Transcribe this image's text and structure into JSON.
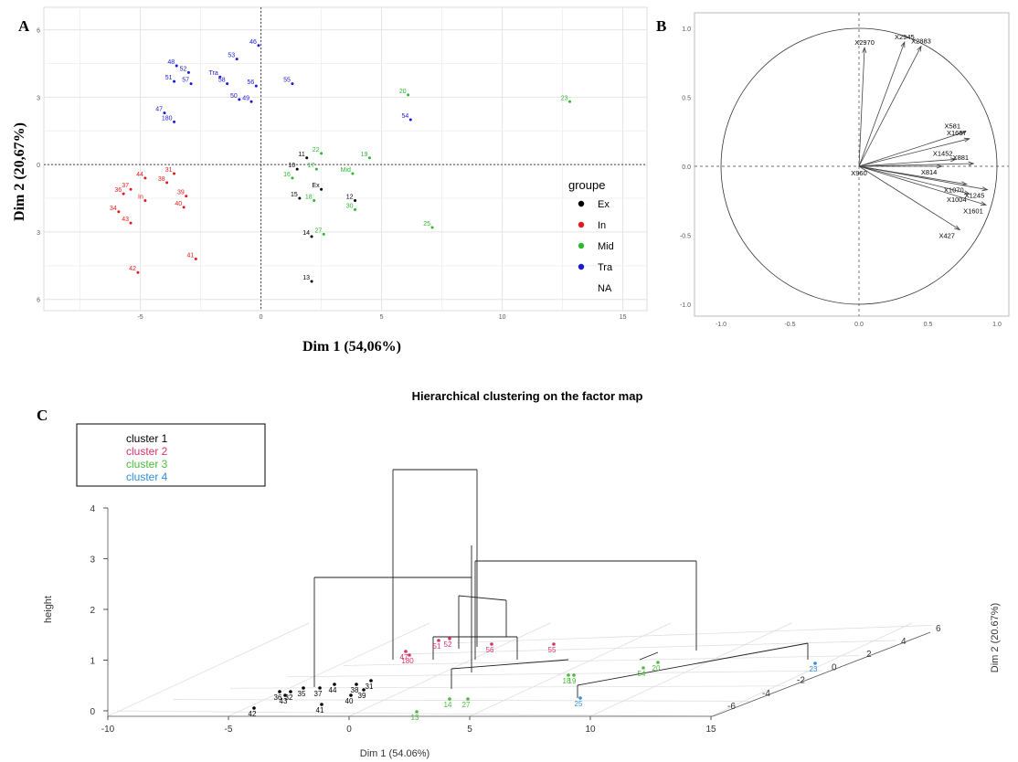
{
  "panels": {
    "a": "A",
    "b": "B",
    "c": "C"
  },
  "colors": {
    "cluster1": "#000000",
    "cluster2": "#d6336b",
    "cluster3": "#4cbb3c",
    "cluster4": "#2f8fd6",
    "Ex": "#000000",
    "In": "#e41a1c",
    "Mid": "#2db82d",
    "Tra": "#1a1ad6"
  },
  "chart_data": [
    {
      "type": "scatter",
      "xlabel": "Dim 1 (54,06%)",
      "ylabel": "Dim 2 (20,67%)",
      "xlim": [
        -9,
        16
      ],
      "ylim": [
        -6.5,
        7
      ],
      "xticks": [
        "-5",
        "0",
        "5",
        "10",
        "15"
      ],
      "yticks": [
        "6",
        "3",
        "0",
        "3",
        "6"
      ],
      "legend": {
        "title": "groupe",
        "entries": [
          "Ex",
          "In",
          "Mid",
          "Tra",
          "NA"
        ]
      },
      "series": [
        {
          "name": "Ex",
          "points": [
            {
              "label": "11",
              "x": 1.9,
              "y": 0.3
            },
            {
              "label": "10",
              "x": 1.5,
              "y": -0.2
            },
            {
              "label": "Ex",
              "x": 2.5,
              "y": -1.1
            },
            {
              "label": "15",
              "x": 1.6,
              "y": -1.5
            },
            {
              "label": "12",
              "x": 3.9,
              "y": -1.6
            },
            {
              "label": "14",
              "x": 2.1,
              "y": -3.2
            },
            {
              "label": "13",
              "x": 2.1,
              "y": -5.2
            }
          ]
        },
        {
          "name": "In",
          "points": [
            {
              "label": "44",
              "x": -4.8,
              "y": -0.6
            },
            {
              "label": "37",
              "x": -5.4,
              "y": -1.1
            },
            {
              "label": "36",
              "x": -5.7,
              "y": -1.3
            },
            {
              "label": "31",
              "x": -3.6,
              "y": -0.4
            },
            {
              "label": "38",
              "x": -3.9,
              "y": -0.8
            },
            {
              "label": "39",
              "x": -3.1,
              "y": -1.4
            },
            {
              "label": "In",
              "x": -4.8,
              "y": -1.6
            },
            {
              "label": "40",
              "x": -3.2,
              "y": -1.9
            },
            {
              "label": "34",
              "x": -5.9,
              "y": -2.1
            },
            {
              "label": "43",
              "x": -5.4,
              "y": -2.6
            },
            {
              "label": "41",
              "x": -2.7,
              "y": -4.2
            },
            {
              "label": "42",
              "x": -5.1,
              "y": -4.8
            }
          ]
        },
        {
          "name": "Mid",
          "points": [
            {
              "label": "20",
              "x": 6.1,
              "y": 3.1
            },
            {
              "label": "23",
              "x": 12.8,
              "y": 2.8
            },
            {
              "label": "22",
              "x": 2.5,
              "y": 0.5
            },
            {
              "label": "19",
              "x": 4.5,
              "y": 0.3
            },
            {
              "label": "17",
              "x": 2.3,
              "y": -0.2
            },
            {
              "label": "16",
              "x": 1.3,
              "y": -0.6
            },
            {
              "label": "Mid",
              "x": 3.8,
              "y": -0.4
            },
            {
              "label": "18",
              "x": 2.2,
              "y": -1.6
            },
            {
              "label": "30",
              "x": 3.9,
              "y": -2.0
            },
            {
              "label": "27",
              "x": 2.6,
              "y": -3.1
            },
            {
              "label": "25",
              "x": 7.1,
              "y": -2.8
            }
          ]
        },
        {
          "name": "Tra",
          "points": [
            {
              "label": "46",
              "x": -0.1,
              "y": 5.3
            },
            {
              "label": "53",
              "x": -1.0,
              "y": 4.7
            },
            {
              "label": "48",
              "x": -3.5,
              "y": 4.4
            },
            {
              "label": "52",
              "x": -3.0,
              "y": 4.1
            },
            {
              "label": "51",
              "x": -3.6,
              "y": 3.7
            },
            {
              "label": "57",
              "x": -2.9,
              "y": 3.6
            },
            {
              "label": "Tra",
              "x": -1.7,
              "y": 3.9
            },
            {
              "label": "58",
              "x": -1.4,
              "y": 3.6
            },
            {
              "label": "56",
              "x": -0.2,
              "y": 3.5
            },
            {
              "label": "55",
              "x": 1.3,
              "y": 3.6
            },
            {
              "label": "50",
              "x": -0.9,
              "y": 2.9
            },
            {
              "label": "49",
              "x": -0.4,
              "y": 2.8
            },
            {
              "label": "47",
              "x": -4.0,
              "y": 2.3
            },
            {
              "label": "54",
              "x": 6.2,
              "y": 2.0
            },
            {
              "label": "180",
              "x": -3.6,
              "y": 1.9
            }
          ]
        }
      ]
    },
    {
      "type": "scatter",
      "xlim": [
        -1.1,
        1.1
      ],
      "ylim": [
        -1.1,
        1.1
      ],
      "xticks": [
        "-1.0",
        "-0.5",
        "0.0",
        "0.5",
        "1.0"
      ],
      "yticks": [
        "1.0",
        "0.5",
        "0.0",
        "-0.5",
        "-1.0"
      ],
      "points": [
        {
          "label": "X2970",
          "x": 0.04,
          "y": 0.86
        },
        {
          "label": "X2945",
          "x": 0.33,
          "y": 0.9
        },
        {
          "label": "X2883",
          "x": 0.45,
          "y": 0.87
        },
        {
          "label": "X581",
          "x": 0.77,
          "y": 0.25
        },
        {
          "label": "X1667",
          "x": 0.8,
          "y": 0.2
        },
        {
          "label": "X1452",
          "x": 0.7,
          "y": 0.05
        },
        {
          "label": "X814",
          "x": 0.6,
          "y": 0.0
        },
        {
          "label": "X881",
          "x": 0.83,
          "y": 0.02
        },
        {
          "label": "X960",
          "x": 0.0,
          "y": 0.0
        },
        {
          "label": "X1070",
          "x": 0.78,
          "y": -0.13
        },
        {
          "label": "X1245",
          "x": 0.93,
          "y": -0.17
        },
        {
          "label": "X1004",
          "x": 0.8,
          "y": -0.2
        },
        {
          "label": "X1601",
          "x": 0.92,
          "y": -0.28
        },
        {
          "label": "X427",
          "x": 0.73,
          "y": -0.46
        }
      ]
    },
    {
      "type": "scatter",
      "title": "Hierarchical clustering on the factor map",
      "xlabel": "Dim 1 (54.06%)",
      "ylabel": "Dim 2 (20.67%)",
      "zlabel": "height",
      "xticks": [
        "-10",
        "-5",
        "0",
        "5",
        "10",
        "15"
      ],
      "yticks": [
        "-6",
        "-4",
        "-2",
        "0",
        "2",
        "4",
        "6"
      ],
      "zticks": [
        "0",
        "1",
        "2",
        "3",
        "4"
      ],
      "legend": [
        "cluster 1",
        "cluster 2",
        "cluster 3",
        "cluster 4"
      ],
      "labels": {
        "cluster1": [
          "36",
          "32",
          "35",
          "37",
          "44",
          "38",
          "31",
          "40",
          "39",
          "43",
          "41",
          "42"
        ],
        "cluster2": [
          "47",
          "180",
          "51",
          "56",
          "52",
          "55"
        ],
        "cluster3": [
          "20",
          "18",
          "19",
          "13",
          "14",
          "27",
          "54"
        ],
        "cluster4": [
          "23",
          "25"
        ]
      }
    }
  ]
}
